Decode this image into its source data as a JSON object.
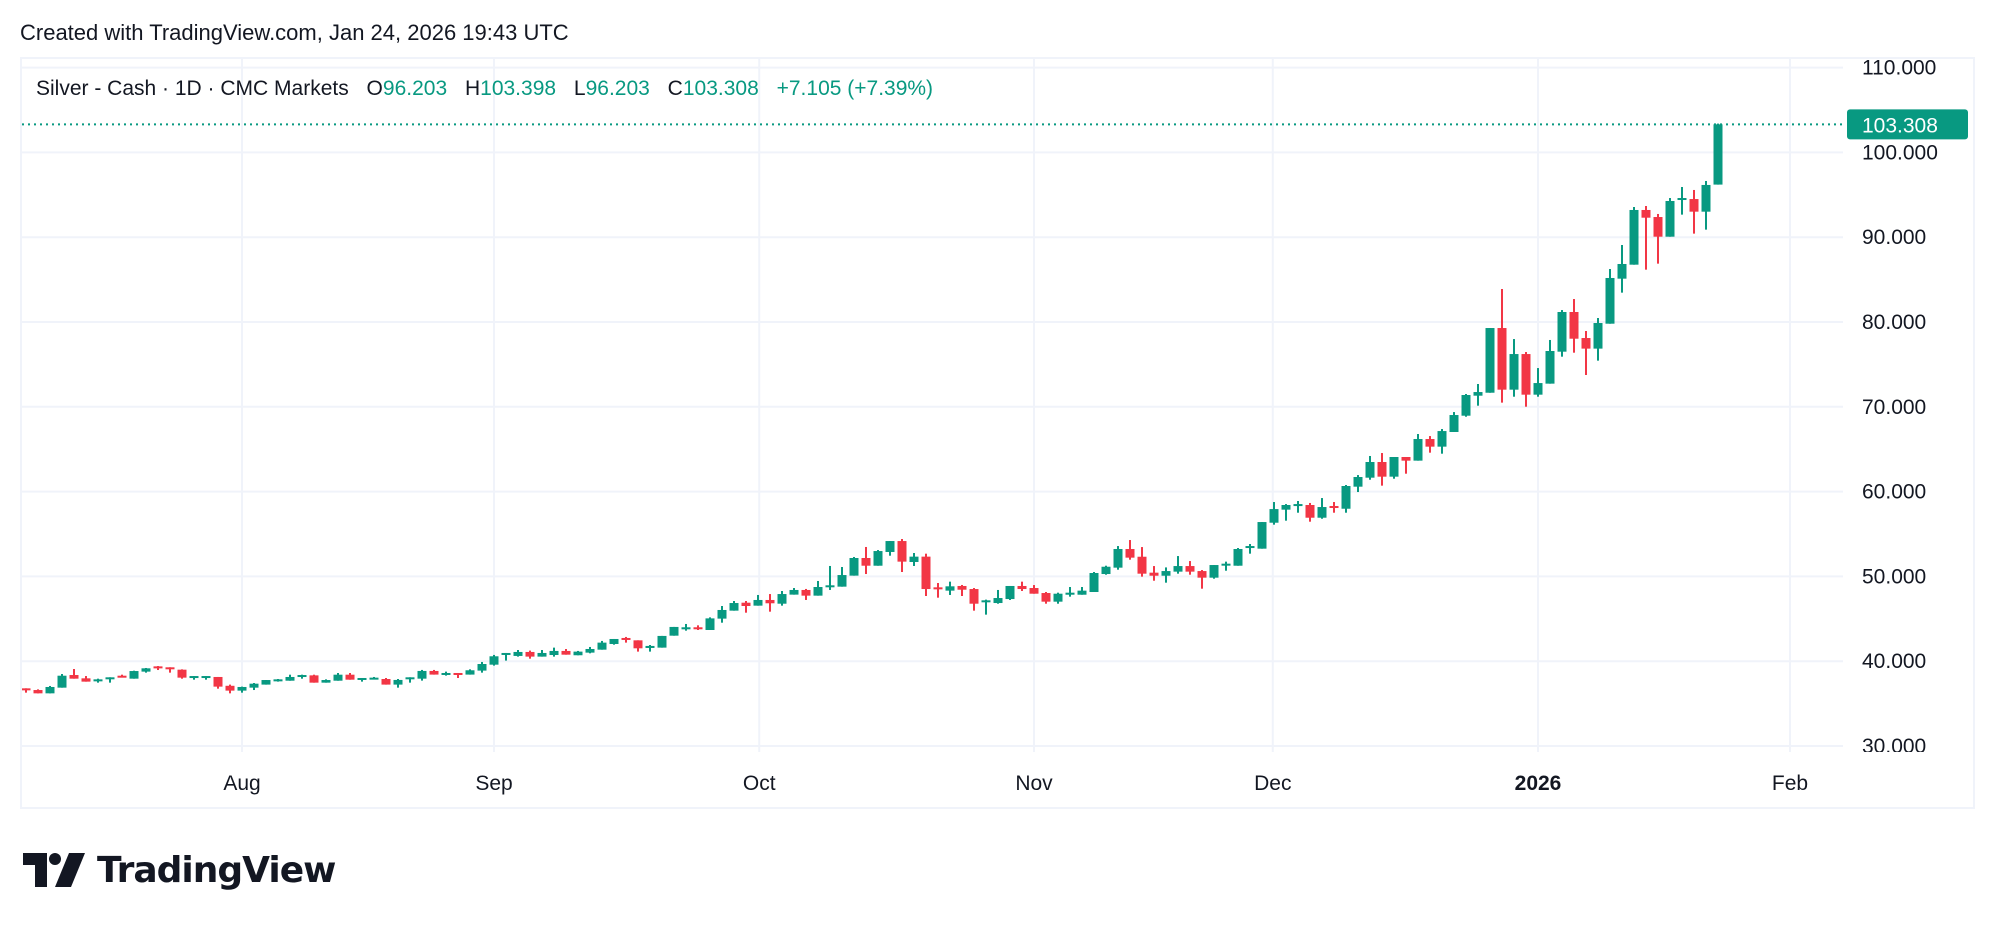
{
  "header": {
    "created_text": "Created with TradingView.com, Jan 24, 2026 19:43 UTC"
  },
  "legend": {
    "symbol": "Silver - Cash · 1D · CMC Markets",
    "open_label": "O",
    "open": "96.203",
    "high_label": "H",
    "high": "103.398",
    "low_label": "L",
    "low": "96.203",
    "close_label": "C",
    "close": "103.308",
    "change": "+7.105 (+7.39%)"
  },
  "logo": {
    "text": "TradingView"
  },
  "colors": {
    "up": "#089981",
    "down": "#F23645",
    "grid": "#f0f3fa",
    "text": "#131722"
  },
  "chart_data": {
    "type": "candlestick",
    "interval": "1D",
    "ylim": [
      30,
      110
    ],
    "grid": true,
    "y_ticks": [
      "110.000",
      "100.000",
      "90.000",
      "80.000",
      "70.000",
      "60.000",
      "50.000",
      "40.000",
      "30.000"
    ],
    "y_tick_values": [
      110,
      100,
      90,
      80,
      70,
      60,
      50,
      40,
      30
    ],
    "x_ticks": [
      {
        "label": "Aug",
        "bold": false
      },
      {
        "label": "Sep",
        "bold": false
      },
      {
        "label": "Oct",
        "bold": false
      },
      {
        "label": "Nov",
        "bold": false
      },
      {
        "label": "Dec",
        "bold": false
      },
      {
        "label": "2026",
        "bold": true
      },
      {
        "label": "Feb",
        "bold": false
      }
    ],
    "last_price": 103.308,
    "last_price_label": "103.308",
    "ohlc_fields": [
      "open",
      "high",
      "low",
      "close"
    ],
    "ohlc": [
      [
        36.8,
        36.8,
        36.29,
        36.6
      ],
      [
        36.6,
        36.68,
        36.21,
        36.21
      ],
      [
        36.21,
        37.08,
        36.21,
        36.96
      ],
      [
        36.88,
        38.49,
        36.88,
        38.29
      ],
      [
        38.37,
        39.08,
        37.94,
        37.94
      ],
      [
        37.98,
        38.25,
        37.59,
        37.59
      ],
      [
        37.7,
        37.94,
        37.47,
        37.86
      ],
      [
        37.94,
        38.1,
        37.47,
        38.1
      ],
      [
        38.29,
        38.41,
        38.1,
        38.1
      ],
      [
        37.94,
        38.88,
        37.94,
        38.84
      ],
      [
        38.77,
        39.2,
        38.65,
        39.16
      ],
      [
        39.39,
        39.43,
        38.96,
        39.2
      ],
      [
        39.28,
        39.28,
        38.65,
        39.12
      ],
      [
        39.0,
        39.04,
        37.94,
        38.06
      ],
      [
        38.14,
        38.25,
        37.82,
        38.25
      ],
      [
        38.14,
        38.25,
        37.82,
        38.25
      ],
      [
        38.14,
        38.14,
        36.76,
        37.0
      ],
      [
        37.1,
        37.24,
        36.21,
        36.53
      ],
      [
        36.53,
        37.0,
        36.29,
        36.96
      ],
      [
        36.88,
        37.43,
        36.6,
        37.35
      ],
      [
        37.24,
        37.78,
        37.24,
        37.78
      ],
      [
        37.7,
        37.9,
        37.59,
        37.86
      ],
      [
        37.7,
        38.41,
        37.7,
        38.14
      ],
      [
        38.22,
        38.41,
        37.94,
        38.37
      ],
      [
        38.33,
        38.41,
        37.47,
        37.47
      ],
      [
        37.47,
        37.86,
        37.47,
        37.78
      ],
      [
        37.7,
        38.61,
        37.7,
        38.41
      ],
      [
        38.41,
        38.61,
        37.82,
        37.82
      ],
      [
        37.83,
        38.02,
        37.59,
        38.02
      ],
      [
        37.87,
        38.14,
        37.87,
        38.06
      ],
      [
        37.9,
        38.02,
        37.24,
        37.24
      ],
      [
        37.24,
        37.9,
        36.88,
        37.79
      ],
      [
        37.94,
        38.1,
        37.47,
        38.1
      ],
      [
        37.94,
        38.97,
        37.71,
        38.85
      ],
      [
        38.85,
        38.97,
        38.42,
        38.42
      ],
      [
        38.42,
        38.77,
        38.3,
        38.61
      ],
      [
        38.61,
        38.61,
        38.02,
        38.38
      ],
      [
        38.42,
        39.04,
        38.42,
        38.93
      ],
      [
        38.89,
        39.91,
        38.65,
        39.67
      ],
      [
        39.59,
        40.74,
        39.48,
        40.58
      ],
      [
        40.81,
        40.97,
        40.07,
        40.97
      ],
      [
        40.62,
        41.32,
        40.54,
        41.09
      ],
      [
        41.09,
        41.25,
        40.3,
        40.54
      ],
      [
        40.54,
        41.32,
        40.54,
        40.97
      ],
      [
        40.73,
        41.6,
        40.54,
        41.21
      ],
      [
        41.21,
        41.44,
        40.77,
        40.77
      ],
      [
        40.7,
        41.21,
        40.7,
        41.13
      ],
      [
        41.01,
        41.68,
        40.93,
        41.44
      ],
      [
        41.36,
        42.39,
        41.36,
        42.19
      ],
      [
        42.03,
        42.62,
        41.95,
        42.62
      ],
      [
        42.74,
        42.86,
        42.19,
        42.54
      ],
      [
        42.46,
        42.46,
        41.13,
        41.52
      ],
      [
        41.56,
        41.91,
        41.13,
        41.8
      ],
      [
        41.6,
        42.98,
        41.6,
        42.98
      ],
      [
        43.01,
        44.04,
        43.01,
        44.04
      ],
      [
        43.76,
        44.39,
        43.6,
        44.0
      ],
      [
        44.0,
        44.23,
        43.68,
        43.84
      ],
      [
        43.68,
        45.17,
        43.68,
        45.05
      ],
      [
        45.02,
        46.51,
        44.54,
        46.04
      ],
      [
        45.96,
        47.1,
        45.96,
        46.86
      ],
      [
        46.9,
        47.1,
        45.72,
        46.51
      ],
      [
        46.55,
        47.81,
        46.55,
        47.22
      ],
      [
        47.22,
        47.92,
        45.84,
        46.83
      ],
      [
        46.78,
        48.28,
        46.55,
        47.92
      ],
      [
        47.85,
        48.63,
        47.85,
        48.4
      ],
      [
        48.4,
        48.52,
        47.22,
        47.73
      ],
      [
        47.73,
        49.46,
        47.73,
        48.75
      ],
      [
        48.75,
        51.23,
        48.4,
        48.95
      ],
      [
        48.79,
        51.11,
        48.79,
        50.16
      ],
      [
        50.09,
        52.29,
        50.09,
        52.17
      ],
      [
        52.17,
        53.47,
        50.28,
        51.26
      ],
      [
        51.26,
        53.11,
        51.26,
        52.99
      ],
      [
        52.88,
        54.17,
        52.44,
        54.17
      ],
      [
        54.17,
        54.41,
        50.52,
        51.74
      ],
      [
        51.7,
        52.76,
        51.23,
        52.33
      ],
      [
        52.33,
        52.68,
        47.69,
        48.51
      ],
      [
        48.71,
        49.22,
        47.49,
        48.55
      ],
      [
        48.32,
        49.38,
        47.81,
        48.83
      ],
      [
        48.87,
        48.99,
        47.69,
        48.43
      ],
      [
        48.51,
        48.63,
        45.96,
        46.78
      ],
      [
        46.98,
        47.26,
        45.49,
        47.18
      ],
      [
        46.86,
        48.4,
        46.78,
        47.45
      ],
      [
        47.33,
        48.87,
        47.22,
        48.87
      ],
      [
        48.87,
        49.38,
        48.28,
        48.51
      ],
      [
        48.63,
        48.98,
        47.96,
        47.96
      ],
      [
        48.04,
        48.16,
        46.78,
        47.02
      ],
      [
        47.02,
        48.08,
        46.78,
        47.96
      ],
      [
        47.84,
        48.75,
        47.61,
        48.08
      ],
      [
        47.84,
        48.75,
        47.84,
        48.32
      ],
      [
        48.16,
        50.52,
        48.16,
        50.4
      ],
      [
        50.28,
        51.26,
        50.2,
        51.14
      ],
      [
        51.03,
        53.58,
        50.79,
        53.23
      ],
      [
        53.23,
        54.29,
        51.97,
        52.21
      ],
      [
        52.32,
        53.46,
        49.97,
        50.32
      ],
      [
        50.44,
        51.22,
        49.49,
        50.08
      ],
      [
        50.08,
        51.06,
        49.26,
        50.63
      ],
      [
        50.56,
        52.4,
        50.32,
        51.22
      ],
      [
        51.22,
        51.81,
        50.2,
        50.56
      ],
      [
        50.63,
        50.75,
        48.55,
        49.85
      ],
      [
        49.85,
        51.34,
        49.73,
        51.34
      ],
      [
        51.3,
        51.74,
        50.67,
        51.5
      ],
      [
        51.26,
        53.35,
        51.26,
        53.23
      ],
      [
        53.35,
        53.82,
        52.68,
        53.58
      ],
      [
        53.27,
        56.41,
        53.27,
        56.41
      ],
      [
        56.33,
        58.77,
        56.1,
        57.94
      ],
      [
        57.87,
        58.53,
        56.57,
        58.42
      ],
      [
        58.34,
        58.89,
        57.51,
        58.53
      ],
      [
        58.42,
        58.66,
        56.45,
        56.92
      ],
      [
        56.92,
        59.24,
        56.8,
        58.18
      ],
      [
        58.3,
        58.77,
        57.51,
        58.1
      ],
      [
        57.98,
        60.78,
        57.51,
        60.66
      ],
      [
        60.58,
        61.95,
        59.95,
        61.72
      ],
      [
        61.64,
        64.2,
        61.4,
        63.49
      ],
      [
        63.49,
        64.55,
        60.7,
        61.76
      ],
      [
        61.76,
        64.08,
        61.52,
        64.08
      ],
      [
        64.08,
        64.08,
        62.11,
        63.65
      ],
      [
        63.65,
        66.79,
        63.65,
        66.2
      ],
      [
        66.2,
        66.55,
        64.59,
        65.3
      ],
      [
        65.3,
        67.38,
        64.47,
        67.14
      ],
      [
        67.03,
        69.38,
        67.03,
        69.03
      ],
      [
        68.95,
        71.51,
        68.83,
        71.39
      ],
      [
        71.31,
        72.69,
        70.13,
        71.74
      ],
      [
        71.66,
        79.29,
        71.66,
        79.29
      ],
      [
        79.29,
        83.89,
        70.49,
        72.02
      ],
      [
        72.02,
        77.99,
        71.19,
        76.22
      ],
      [
        76.22,
        76.46,
        70.01,
        71.43
      ],
      [
        71.43,
        74.57,
        71.19,
        72.8
      ],
      [
        72.73,
        77.88,
        72.73,
        76.58
      ],
      [
        76.5,
        81.41,
        75.91,
        81.18
      ],
      [
        81.18,
        82.71,
        76.38,
        78.03
      ],
      [
        78.11,
        78.94,
        73.75,
        76.86
      ],
      [
        76.86,
        80.47,
        75.44,
        79.88
      ],
      [
        79.8,
        86.25,
        79.8,
        85.19
      ],
      [
        85.11,
        89.08,
        83.46,
        86.84
      ],
      [
        86.76,
        93.56,
        86.76,
        93.21
      ],
      [
        93.21,
        93.68,
        86.17,
        92.3
      ],
      [
        92.38,
        92.74,
        86.88,
        90.06
      ],
      [
        90.06,
        94.62,
        90.06,
        94.27
      ],
      [
        94.43,
        95.92,
        92.66,
        94.62
      ],
      [
        94.5,
        95.57,
        90.42,
        93.01
      ],
      [
        93.01,
        96.63,
        90.89,
        96.16
      ],
      [
        96.203,
        103.398,
        96.203,
        103.308
      ]
    ]
  }
}
